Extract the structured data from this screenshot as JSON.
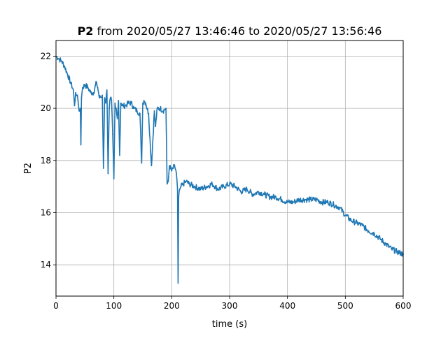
{
  "chart_data": {
    "type": "line",
    "title_bold": "P2",
    "title_rest": " from 2020/05/27 13:46:46 to 2020/05/27 13:56:46",
    "xlabel": "time (s)",
    "ylabel": "P2",
    "xlim": [
      0,
      600
    ],
    "ylim": [
      12.8,
      22.6
    ],
    "xticks": [
      0,
      100,
      200,
      300,
      400,
      500,
      600
    ],
    "yticks": [
      14,
      16,
      18,
      20,
      22
    ],
    "grid": true,
    "line_color": "#1f77b4",
    "x": [
      0,
      5,
      10,
      15,
      20,
      25,
      30,
      32,
      34,
      36,
      38,
      40,
      42,
      43,
      44,
      46,
      50,
      55,
      60,
      65,
      70,
      72,
      75,
      80,
      82,
      84,
      86,
      88,
      90,
      92,
      94,
      96,
      98,
      100,
      102,
      104,
      106,
      108,
      110,
      112,
      114,
      116,
      120,
      125,
      130,
      135,
      140,
      145,
      148,
      150,
      152,
      155,
      160,
      165,
      170,
      172,
      175,
      180,
      185,
      190,
      192,
      194,
      196,
      200,
      205,
      208,
      210,
      211,
      212,
      214,
      216,
      220,
      225,
      230,
      240,
      250,
      260,
      270,
      280,
      290,
      300,
      310,
      320,
      330,
      340,
      350,
      360,
      370,
      380,
      390,
      400,
      410,
      420,
      430,
      440,
      450,
      460,
      470,
      480,
      490,
      500,
      510,
      520,
      530,
      540,
      550,
      560,
      570,
      580,
      590,
      600
    ],
    "values": [
      22.0,
      21.9,
      21.8,
      21.6,
      21.3,
      21.0,
      20.7,
      20.1,
      20.6,
      20.5,
      20.3,
      19.9,
      20.0,
      18.6,
      20.4,
      20.8,
      20.9,
      20.8,
      20.6,
      20.6,
      21.0,
      20.8,
      20.4,
      20.5,
      17.7,
      20.4,
      20.2,
      20.7,
      17.5,
      20.0,
      20.4,
      20.3,
      19.0,
      17.3,
      20.2,
      20.0,
      19.6,
      20.3,
      18.2,
      20.2,
      20.1,
      20.1,
      20.1,
      20.2,
      20.2,
      20.0,
      19.9,
      19.8,
      17.9,
      20.2,
      20.3,
      20.2,
      19.8,
      17.8,
      19.9,
      19.3,
      20.0,
      20.0,
      19.9,
      20.0,
      17.1,
      17.2,
      17.8,
      17.6,
      17.8,
      17.5,
      16.9,
      13.3,
      16.6,
      16.9,
      17.0,
      17.1,
      17.2,
      17.1,
      17.0,
      16.9,
      17.0,
      17.1,
      16.9,
      17.0,
      17.1,
      17.0,
      16.8,
      16.9,
      16.7,
      16.8,
      16.7,
      16.6,
      16.6,
      16.5,
      16.4,
      16.4,
      16.5,
      16.5,
      16.5,
      16.5,
      16.4,
      16.4,
      16.3,
      16.2,
      15.9,
      15.7,
      15.6,
      15.5,
      15.3,
      15.2,
      15.0,
      14.8,
      14.6,
      14.5,
      14.4
    ]
  }
}
